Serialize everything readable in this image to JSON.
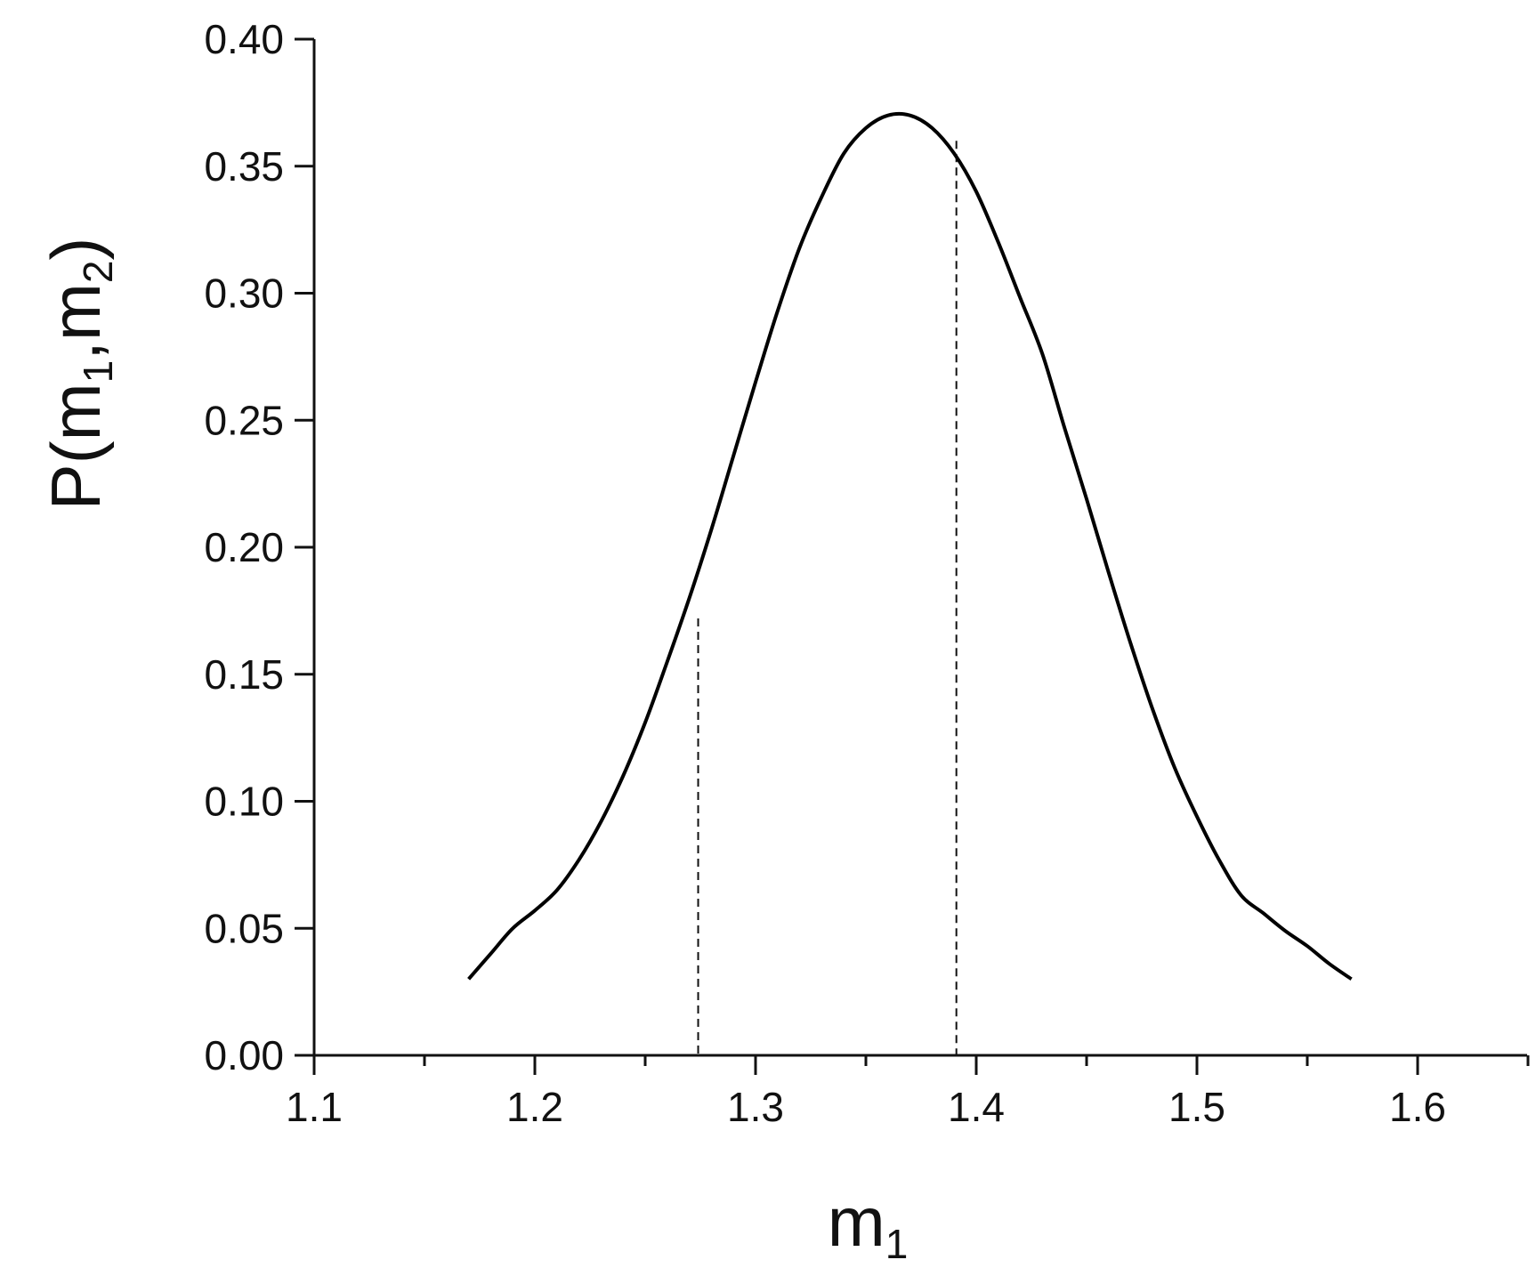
{
  "chart_data": {
    "type": "line",
    "title": "",
    "xlabel": {
      "base": "m",
      "sub": "1"
    },
    "ylabel": {
      "prefix": "P(m",
      "sub1": "1",
      "mid": ",m",
      "sub2": "2",
      "suffix": ")"
    },
    "xlim": [
      1.1,
      1.65
    ],
    "ylim": [
      0,
      0.4
    ],
    "xticks": [
      1.1,
      1.2,
      1.3,
      1.4,
      1.5,
      1.6
    ],
    "xtick_labels": [
      "1.1",
      "1.2",
      "1.3",
      "1.4",
      "1.5",
      "1.6"
    ],
    "yticks": [
      0,
      0.05,
      0.1,
      0.15,
      0.2,
      0.25,
      0.3,
      0.35,
      0.4
    ],
    "ytick_labels": [
      "0.00",
      "0.05",
      "0.10",
      "0.15",
      "0.20",
      "0.25",
      "0.30",
      "0.35",
      "0.40"
    ],
    "grid": false,
    "series": [
      {
        "x": [
          1.17,
          1.18,
          1.19,
          1.2,
          1.21,
          1.22,
          1.23,
          1.24,
          1.25,
          1.26,
          1.27,
          1.28,
          1.29,
          1.3,
          1.31,
          1.32,
          1.33,
          1.34,
          1.35,
          1.36,
          1.37,
          1.38,
          1.39,
          1.4,
          1.41,
          1.42,
          1.43,
          1.44,
          1.45,
          1.46,
          1.47,
          1.48,
          1.49,
          1.5,
          1.51,
          1.52,
          1.53,
          1.54,
          1.55,
          1.56,
          1.57
        ],
        "y": [
          0.03,
          0.04,
          0.05,
          0.057,
          0.065,
          0.077,
          0.092,
          0.11,
          0.131,
          0.155,
          0.18,
          0.207,
          0.236,
          0.265,
          0.293,
          0.318,
          0.338,
          0.355,
          0.365,
          0.37,
          0.37,
          0.365,
          0.355,
          0.34,
          0.32,
          0.298,
          0.276,
          0.247,
          0.219,
          0.19,
          0.162,
          0.136,
          0.113,
          0.094,
          0.077,
          0.063,
          0.056,
          0.049,
          0.043,
          0.036,
          0.03
        ]
      }
    ],
    "reference_lines": [
      {
        "x": 1.274,
        "y_top": 0.172,
        "style": "dashed"
      },
      {
        "x": 1.391,
        "y_top": 0.36,
        "style": "dashed"
      }
    ]
  }
}
